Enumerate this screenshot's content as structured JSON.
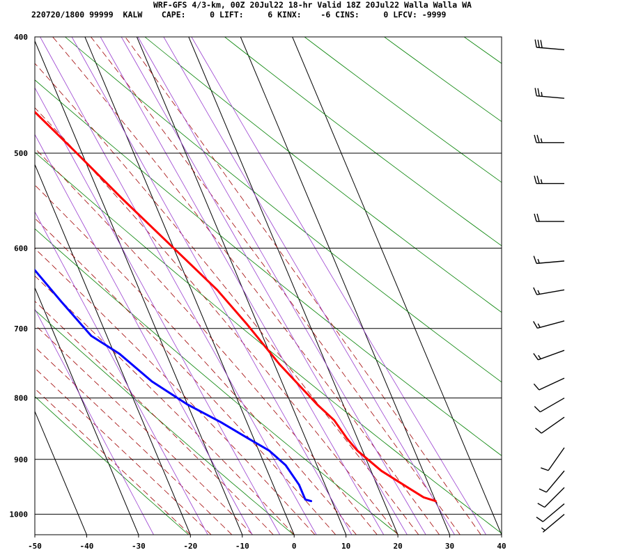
{
  "header": {
    "line1": "WRF-GFS 4/3-km, 00Z 20Jul22 18-hr Valid 18Z 20Jul22 Walla Walla WA",
    "line2": "220720/1800 99999  KALW    CAPE:     0 LIFT:     6 KINX:    -6 CINS:     0 LFCV: -9999"
  },
  "chart_data": {
    "type": "skew-t sounding",
    "title": "WRF-GFS 4/3-km, 00Z 20Jul22 18-hr Valid 18Z 20Jul22 Walla Walla WA",
    "xlabel": "",
    "ylabel": "",
    "xlim": [
      -50,
      40
    ],
    "ylim_pressure": [
      1040,
      400
    ],
    "x_ticks": [
      "-50",
      "-40",
      "-30",
      "-20",
      "-10",
      "0",
      "10",
      "20",
      "30",
      "40"
    ],
    "y_ticks": [
      "400",
      "500",
      "600",
      "700",
      "800",
      "900",
      "1000"
    ],
    "y_tick_values": [
      400,
      500,
      600,
      700,
      800,
      900,
      1000
    ],
    "grid": true,
    "series": [
      {
        "color": "#ff0000",
        "points": [
          [
            30,
            975
          ],
          [
            28,
            968
          ],
          [
            26,
            952
          ],
          [
            22,
            920
          ],
          [
            19,
            885
          ],
          [
            18,
            865
          ],
          [
            17,
            835
          ],
          [
            15,
            810
          ],
          [
            11,
            750
          ],
          [
            8,
            695
          ],
          [
            5,
            650
          ],
          [
            0,
            600
          ],
          [
            -6,
            545
          ],
          [
            -11,
            500
          ],
          [
            -16,
            460
          ],
          [
            -20,
            440
          ],
          [
            -24,
            410
          ]
        ]
      },
      {
        "color": "#0000ff",
        "points": [
          [
            6,
            975
          ],
          [
            5,
            972
          ],
          [
            5,
            945
          ],
          [
            4,
            910
          ],
          [
            2,
            885
          ],
          [
            -1,
            865
          ],
          [
            -5,
            838
          ],
          [
            -10,
            810
          ],
          [
            -15,
            775
          ],
          [
            -19,
            735
          ],
          [
            -23,
            710
          ],
          [
            -26,
            665
          ],
          [
            -30,
            605
          ],
          [
            -34,
            560
          ],
          [
            -38,
            525
          ],
          [
            -40,
            490
          ],
          [
            -41,
            455
          ],
          [
            -43,
            410
          ]
        ]
      }
    ],
    "wind_barbs": [
      {
        "pressure": 410,
        "speed": 30,
        "direction": 275
      },
      {
        "pressure": 450,
        "speed": 25,
        "direction": 275
      },
      {
        "pressure": 490,
        "speed": 25,
        "direction": 270
      },
      {
        "pressure": 530,
        "speed": 25,
        "direction": 270
      },
      {
        "pressure": 570,
        "speed": 20,
        "direction": 270
      },
      {
        "pressure": 615,
        "speed": 15,
        "direction": 265
      },
      {
        "pressure": 650,
        "speed": 15,
        "direction": 260
      },
      {
        "pressure": 690,
        "speed": 15,
        "direction": 255
      },
      {
        "pressure": 730,
        "speed": 15,
        "direction": 250
      },
      {
        "pressure": 770,
        "speed": 10,
        "direction": 245
      },
      {
        "pressure": 800,
        "speed": 10,
        "direction": 240
      },
      {
        "pressure": 830,
        "speed": 10,
        "direction": 235
      },
      {
        "pressure": 880,
        "speed": 10,
        "direction": 215
      },
      {
        "pressure": 920,
        "speed": 10,
        "direction": 220
      },
      {
        "pressure": 950,
        "speed": 10,
        "direction": 225
      },
      {
        "pressure": 980,
        "speed": 10,
        "direction": 230
      },
      {
        "pressure": 1000,
        "speed": 5,
        "direction": 230
      }
    ],
    "colors": {
      "isotherm": "#000000",
      "dry_adiabat": "#008000",
      "moist_adiabat": "#a00000",
      "mixing_ratio": "#9a3fd0",
      "temperature": "#ff0000",
      "dewpoint": "#0000ff"
    }
  }
}
